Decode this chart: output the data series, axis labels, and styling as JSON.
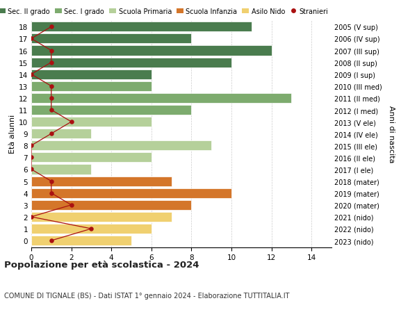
{
  "ages": [
    18,
    17,
    16,
    15,
    14,
    13,
    12,
    11,
    10,
    9,
    8,
    7,
    6,
    5,
    4,
    3,
    2,
    1,
    0
  ],
  "right_labels": [
    "2005 (V sup)",
    "2006 (IV sup)",
    "2007 (III sup)",
    "2008 (II sup)",
    "2009 (I sup)",
    "2010 (III med)",
    "2011 (II med)",
    "2012 (I med)",
    "2013 (V ele)",
    "2014 (IV ele)",
    "2015 (III ele)",
    "2016 (II ele)",
    "2017 (I ele)",
    "2018 (mater)",
    "2019 (mater)",
    "2020 (mater)",
    "2021 (nido)",
    "2022 (nido)",
    "2023 (nido)"
  ],
  "bar_values": [
    11,
    8,
    12,
    10,
    6,
    6,
    13,
    8,
    6,
    3,
    9,
    6,
    3,
    7,
    10,
    8,
    7,
    6,
    5
  ],
  "bar_colors": [
    "#4a7c4e",
    "#4a7c4e",
    "#4a7c4e",
    "#4a7c4e",
    "#4a7c4e",
    "#7dab6e",
    "#7dab6e",
    "#7dab6e",
    "#b5d09a",
    "#b5d09a",
    "#b5d09a",
    "#b5d09a",
    "#b5d09a",
    "#d4762a",
    "#d4762a",
    "#d4762a",
    "#f0d070",
    "#f0d070",
    "#f0d070"
  ],
  "stranieri_values": [
    1,
    0,
    1,
    1,
    0,
    1,
    1,
    1,
    2,
    1,
    0,
    0,
    0,
    1,
    1,
    2,
    0,
    3,
    1
  ],
  "legend_labels": [
    "Sec. II grado",
    "Sec. I grado",
    "Scuola Primaria",
    "Scuola Infanzia",
    "Asilo Nido",
    "Stranieri"
  ],
  "legend_colors": [
    "#4a7c4e",
    "#7dab6e",
    "#b5d09a",
    "#d4762a",
    "#f0d070",
    "#aa1111"
  ],
  "ylabel_left": "Età alunni",
  "ylabel_right": "Anni di nascita",
  "title": "Popolazione per età scolastica - 2024",
  "subtitle": "COMUNE DI TIGNALE (BS) - Dati ISTAT 1° gennaio 2024 - Elaborazione TUTTITALIA.IT",
  "xlim": [
    0,
    15
  ],
  "xticks": [
    0,
    2,
    4,
    6,
    8,
    10,
    12,
    14
  ],
  "ylim": [
    -0.55,
    18.55
  ],
  "background_color": "#ffffff",
  "grid_color": "#cccccc",
  "stranieri_color": "#aa1111"
}
